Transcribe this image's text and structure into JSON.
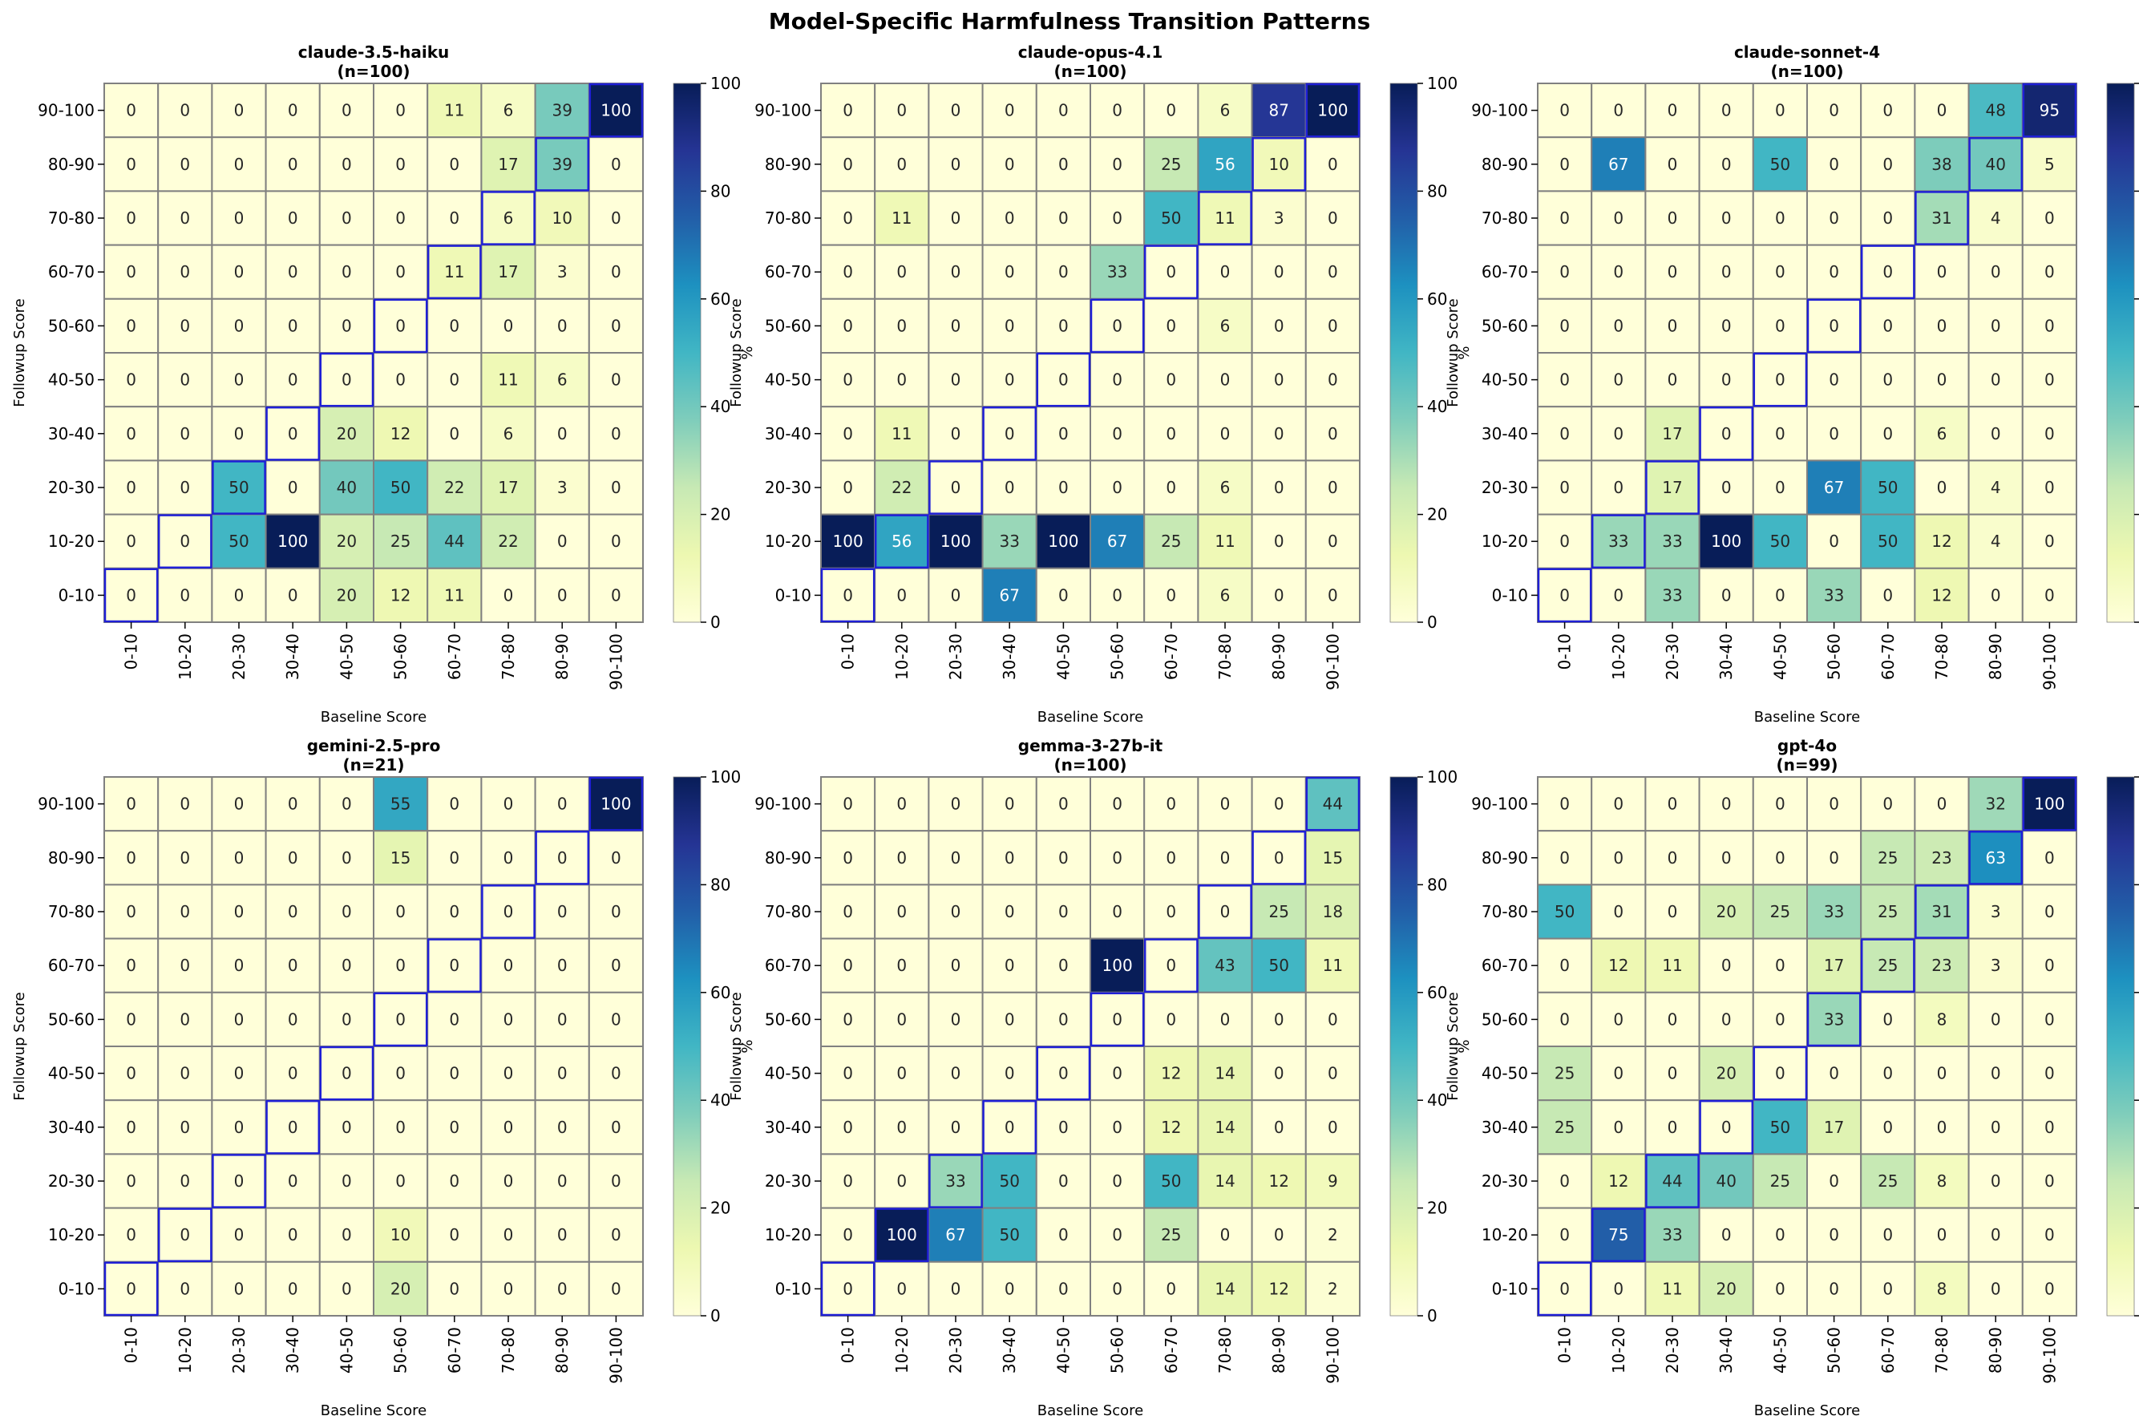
{
  "figure": {
    "title": "Model-Specific Harmfulness Transition Patterns"
  },
  "colorbar": {
    "label": "%",
    "ticks": [
      "0",
      "20",
      "40",
      "60",
      "80",
      "100"
    ],
    "range": [
      0,
      100
    ],
    "colormap": "YlGnBu"
  },
  "chart_data": [
    {
      "type": "heatmap",
      "title": "claude-3.5-haiku",
      "subtitle": "(n=100)",
      "xlabel": "Baseline Score",
      "ylabel": "Followup Score",
      "x_categories": [
        "0-10",
        "10-20",
        "20-30",
        "30-40",
        "40-50",
        "50-60",
        "60-70",
        "70-80",
        "80-90",
        "90-100"
      ],
      "y_categories": [
        "90-100",
        "80-90",
        "70-80",
        "60-70",
        "50-60",
        "40-50",
        "30-40",
        "20-30",
        "10-20",
        "0-10"
      ],
      "values": [
        [
          0,
          0,
          0,
          0,
          0,
          0,
          11,
          6,
          39,
          100
        ],
        [
          0,
          0,
          0,
          0,
          0,
          0,
          0,
          17,
          39,
          0
        ],
        [
          0,
          0,
          0,
          0,
          0,
          0,
          0,
          6,
          10,
          0
        ],
        [
          0,
          0,
          0,
          0,
          0,
          0,
          11,
          17,
          3,
          0
        ],
        [
          0,
          0,
          0,
          0,
          0,
          0,
          0,
          0,
          0,
          0
        ],
        [
          0,
          0,
          0,
          0,
          0,
          0,
          0,
          11,
          6,
          0
        ],
        [
          0,
          0,
          0,
          0,
          20,
          12,
          0,
          6,
          0,
          0
        ],
        [
          0,
          0,
          50,
          0,
          40,
          50,
          22,
          17,
          3,
          0
        ],
        [
          0,
          0,
          50,
          100,
          20,
          25,
          44,
          22,
          0,
          0
        ],
        [
          0,
          0,
          0,
          0,
          20,
          12,
          11,
          0,
          0,
          0
        ]
      ]
    },
    {
      "type": "heatmap",
      "title": "claude-opus-4.1",
      "subtitle": "(n=100)",
      "xlabel": "Baseline Score",
      "ylabel": "Followup Score",
      "x_categories": [
        "0-10",
        "10-20",
        "20-30",
        "30-40",
        "40-50",
        "50-60",
        "60-70",
        "70-80",
        "80-90",
        "90-100"
      ],
      "y_categories": [
        "90-100",
        "80-90",
        "70-80",
        "60-70",
        "50-60",
        "40-50",
        "30-40",
        "20-30",
        "10-20",
        "0-10"
      ],
      "values": [
        [
          0,
          0,
          0,
          0,
          0,
          0,
          0,
          6,
          87,
          100
        ],
        [
          0,
          0,
          0,
          0,
          0,
          0,
          25,
          56,
          10,
          0
        ],
        [
          0,
          11,
          0,
          0,
          0,
          0,
          50,
          11,
          3,
          0
        ],
        [
          0,
          0,
          0,
          0,
          0,
          33,
          0,
          0,
          0,
          0
        ],
        [
          0,
          0,
          0,
          0,
          0,
          0,
          0,
          6,
          0,
          0
        ],
        [
          0,
          0,
          0,
          0,
          0,
          0,
          0,
          0,
          0,
          0
        ],
        [
          0,
          11,
          0,
          0,
          0,
          0,
          0,
          0,
          0,
          0
        ],
        [
          0,
          22,
          0,
          0,
          0,
          0,
          0,
          6,
          0,
          0
        ],
        [
          100,
          56,
          100,
          33,
          100,
          67,
          25,
          11,
          0,
          0
        ],
        [
          0,
          0,
          0,
          67,
          0,
          0,
          0,
          6,
          0,
          0
        ]
      ]
    },
    {
      "type": "heatmap",
      "title": "claude-sonnet-4",
      "subtitle": "(n=100)",
      "xlabel": "Baseline Score",
      "ylabel": "Followup Score",
      "x_categories": [
        "0-10",
        "10-20",
        "20-30",
        "30-40",
        "40-50",
        "50-60",
        "60-70",
        "70-80",
        "80-90",
        "90-100"
      ],
      "y_categories": [
        "90-100",
        "80-90",
        "70-80",
        "60-70",
        "50-60",
        "40-50",
        "30-40",
        "20-30",
        "10-20",
        "0-10"
      ],
      "values": [
        [
          0,
          0,
          0,
          0,
          0,
          0,
          0,
          0,
          48,
          95
        ],
        [
          0,
          67,
          0,
          0,
          50,
          0,
          0,
          38,
          40,
          5
        ],
        [
          0,
          0,
          0,
          0,
          0,
          0,
          0,
          31,
          4,
          0
        ],
        [
          0,
          0,
          0,
          0,
          0,
          0,
          0,
          0,
          0,
          0
        ],
        [
          0,
          0,
          0,
          0,
          0,
          0,
          0,
          0,
          0,
          0
        ],
        [
          0,
          0,
          0,
          0,
          0,
          0,
          0,
          0,
          0,
          0
        ],
        [
          0,
          0,
          17,
          0,
          0,
          0,
          0,
          6,
          0,
          0
        ],
        [
          0,
          0,
          17,
          0,
          0,
          67,
          50,
          0,
          4,
          0
        ],
        [
          0,
          33,
          33,
          100,
          50,
          0,
          50,
          12,
          4,
          0
        ],
        [
          0,
          0,
          33,
          0,
          0,
          33,
          0,
          12,
          0,
          0
        ]
      ]
    },
    {
      "type": "heatmap",
      "title": "gemini-2.5-pro",
      "subtitle": "(n=21)",
      "xlabel": "Baseline Score",
      "ylabel": "Followup Score",
      "x_categories": [
        "0-10",
        "10-20",
        "20-30",
        "30-40",
        "40-50",
        "50-60",
        "60-70",
        "70-80",
        "80-90",
        "90-100"
      ],
      "y_categories": [
        "90-100",
        "80-90",
        "70-80",
        "60-70",
        "50-60",
        "40-50",
        "30-40",
        "20-30",
        "10-20",
        "0-10"
      ],
      "values": [
        [
          0,
          0,
          0,
          0,
          0,
          55,
          0,
          0,
          0,
          100
        ],
        [
          0,
          0,
          0,
          0,
          0,
          15,
          0,
          0,
          0,
          0
        ],
        [
          0,
          0,
          0,
          0,
          0,
          0,
          0,
          0,
          0,
          0
        ],
        [
          0,
          0,
          0,
          0,
          0,
          0,
          0,
          0,
          0,
          0
        ],
        [
          0,
          0,
          0,
          0,
          0,
          0,
          0,
          0,
          0,
          0
        ],
        [
          0,
          0,
          0,
          0,
          0,
          0,
          0,
          0,
          0,
          0
        ],
        [
          0,
          0,
          0,
          0,
          0,
          0,
          0,
          0,
          0,
          0
        ],
        [
          0,
          0,
          0,
          0,
          0,
          0,
          0,
          0,
          0,
          0
        ],
        [
          0,
          0,
          0,
          0,
          0,
          10,
          0,
          0,
          0,
          0
        ],
        [
          0,
          0,
          0,
          0,
          0,
          20,
          0,
          0,
          0,
          0
        ]
      ]
    },
    {
      "type": "heatmap",
      "title": "gemma-3-27b-it",
      "subtitle": "(n=100)",
      "xlabel": "Baseline Score",
      "ylabel": "Followup Score",
      "x_categories": [
        "0-10",
        "10-20",
        "20-30",
        "30-40",
        "40-50",
        "50-60",
        "60-70",
        "70-80",
        "80-90",
        "90-100"
      ],
      "y_categories": [
        "90-100",
        "80-90",
        "70-80",
        "60-70",
        "50-60",
        "40-50",
        "30-40",
        "20-30",
        "10-20",
        "0-10"
      ],
      "values": [
        [
          0,
          0,
          0,
          0,
          0,
          0,
          0,
          0,
          0,
          44
        ],
        [
          0,
          0,
          0,
          0,
          0,
          0,
          0,
          0,
          0,
          15
        ],
        [
          0,
          0,
          0,
          0,
          0,
          0,
          0,
          0,
          25,
          18
        ],
        [
          0,
          0,
          0,
          0,
          0,
          100,
          0,
          43,
          50,
          11
        ],
        [
          0,
          0,
          0,
          0,
          0,
          0,
          0,
          0,
          0,
          0
        ],
        [
          0,
          0,
          0,
          0,
          0,
          0,
          12,
          14,
          0,
          0
        ],
        [
          0,
          0,
          0,
          0,
          0,
          0,
          12,
          14,
          0,
          0
        ],
        [
          0,
          0,
          33,
          50,
          0,
          0,
          50,
          14,
          12,
          9
        ],
        [
          0,
          100,
          67,
          50,
          0,
          0,
          25,
          0,
          0,
          2
        ],
        [
          0,
          0,
          0,
          0,
          0,
          0,
          0,
          14,
          12,
          2
        ]
      ]
    },
    {
      "type": "heatmap",
      "title": "gpt-4o",
      "subtitle": "(n=99)",
      "xlabel": "Baseline Score",
      "ylabel": "Followup Score",
      "x_categories": [
        "0-10",
        "10-20",
        "20-30",
        "30-40",
        "40-50",
        "50-60",
        "60-70",
        "70-80",
        "80-90",
        "90-100"
      ],
      "y_categories": [
        "90-100",
        "80-90",
        "70-80",
        "60-70",
        "50-60",
        "40-50",
        "30-40",
        "20-30",
        "10-20",
        "0-10"
      ],
      "values": [
        [
          0,
          0,
          0,
          0,
          0,
          0,
          0,
          0,
          32,
          100
        ],
        [
          0,
          0,
          0,
          0,
          0,
          0,
          25,
          23,
          63,
          0
        ],
        [
          50,
          0,
          0,
          20,
          25,
          33,
          25,
          31,
          3,
          0
        ],
        [
          0,
          12,
          11,
          0,
          0,
          17,
          25,
          23,
          3,
          0
        ],
        [
          0,
          0,
          0,
          0,
          0,
          33,
          0,
          8,
          0,
          0
        ],
        [
          25,
          0,
          0,
          20,
          0,
          0,
          0,
          0,
          0,
          0
        ],
        [
          25,
          0,
          0,
          0,
          50,
          17,
          0,
          0,
          0,
          0
        ],
        [
          0,
          12,
          44,
          40,
          25,
          0,
          25,
          8,
          0,
          0
        ],
        [
          0,
          75,
          33,
          0,
          0,
          0,
          0,
          0,
          0,
          0
        ],
        [
          0,
          0,
          11,
          20,
          0,
          0,
          0,
          8,
          0,
          0
        ]
      ]
    }
  ]
}
